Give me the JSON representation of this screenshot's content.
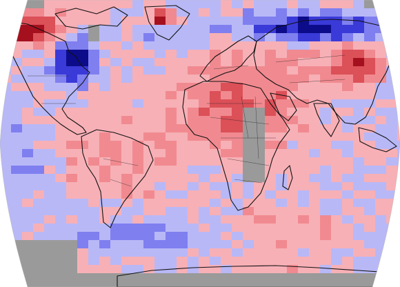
{
  "map": {
    "projection": "robinson",
    "colors": {
      "background": "#ffffff",
      "no_data": "#9a9a9a",
      "strong_cold": "#0c0c8a",
      "cold": "#3a3ad8",
      "cool": "#7f7ff0",
      "slightly_cool": "#b8b8f7",
      "slightly_warm": "#f7b0b6",
      "warm": "#f08a90",
      "hot": "#dc5058",
      "strong_hot": "#a5101e",
      "coastline": "#111111"
    },
    "anomaly_regions": [
      {
        "name": "canadian-arctic-warm",
        "category": "strong_hot"
      },
      {
        "name": "greenland-warm",
        "category": "strong_hot"
      },
      {
        "name": "eastern-north-america-cold",
        "category": "cold"
      },
      {
        "name": "northern-russia-cold",
        "category": "strong_cold"
      },
      {
        "name": "central-asia-warm",
        "category": "hot"
      },
      {
        "name": "africa-europe-warm",
        "category": "hot"
      },
      {
        "name": "antarctica-no-data",
        "category": "no_data"
      },
      {
        "name": "southern-ocean-cool",
        "category": "cool"
      }
    ]
  }
}
